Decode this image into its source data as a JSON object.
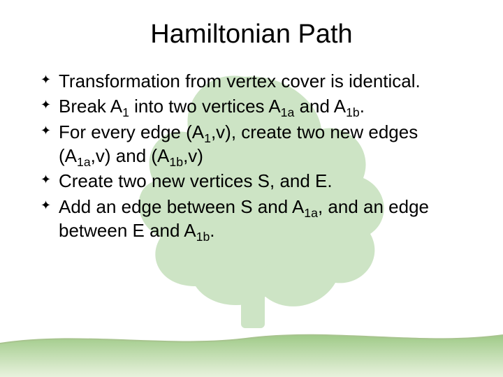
{
  "slide": {
    "title": "Hamiltonian Path",
    "title_fontsize": 38,
    "body_fontsize": 26,
    "text_color": "#000000",
    "bullet_glyph": "✦",
    "bullets": [
      {
        "html": "Transformation from vertex cover is identical."
      },
      {
        "html": "Break A<sub>1</sub> into two vertices A<sub>1a</sub> and A<sub>1b</sub>."
      },
      {
        "html": "For every edge (A<sub>1</sub>,v), create two new edges (A<sub>1a</sub>,v) and (A<sub>1b</sub>,v)"
      },
      {
        "html": "Create two new vertices S, and E."
      },
      {
        "html": "Add an edge between S and A<sub>1a</sub>, and an edge between E and A<sub>1b</sub>."
      }
    ]
  },
  "theme": {
    "background_color": "#ffffff",
    "tree_foliage_color": "#cde4c5",
    "tree_trunk_color": "#cde4c5",
    "ground_color_top": "#9fca88",
    "ground_color_bottom": "#d8e8c9",
    "ground_line_color": "#a8c48f"
  }
}
